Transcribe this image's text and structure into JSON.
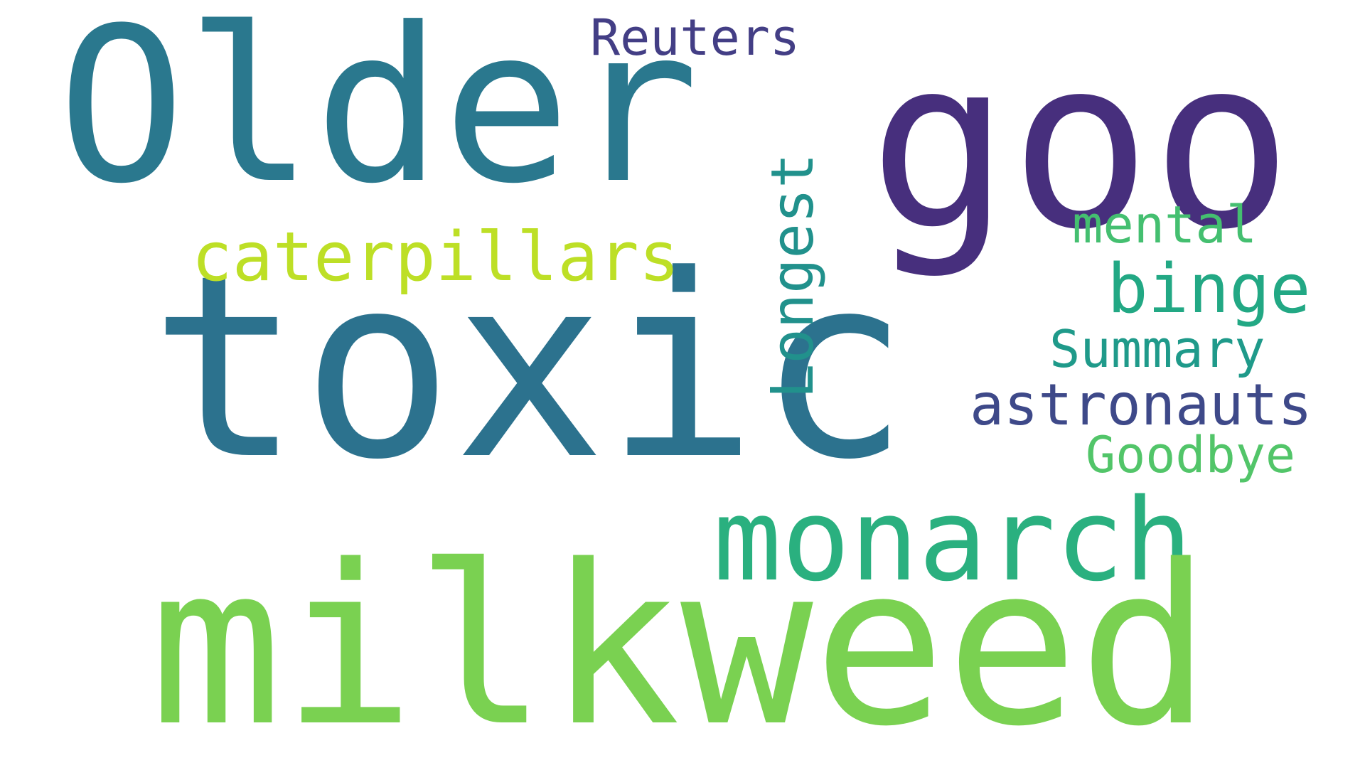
{
  "cloud": {
    "background": "#ffffff",
    "words": [
      {
        "id": "older",
        "text": "Older",
        "color": "#2a788e"
      },
      {
        "id": "goo",
        "text": "goo",
        "color": "#472f7d"
      },
      {
        "id": "reuters",
        "text": "Reuters",
        "color": "#433e85"
      },
      {
        "id": "toxic",
        "text": "toxic",
        "color": "#2c728e"
      },
      {
        "id": "caterpillars",
        "text": "caterpillars",
        "color": "#bddf26"
      },
      {
        "id": "longest",
        "text": "Longest",
        "color": "#21918c"
      },
      {
        "id": "mental",
        "text": "mental",
        "color": "#44bf70"
      },
      {
        "id": "binge",
        "text": "binge",
        "color": "#22a884"
      },
      {
        "id": "summary",
        "text": "Summary",
        "color": "#1f9a8a"
      },
      {
        "id": "astronauts",
        "text": "astronauts",
        "color": "#3e4989"
      },
      {
        "id": "goodbye",
        "text": "Goodbye",
        "color": "#52c569"
      },
      {
        "id": "monarch",
        "text": "monarch",
        "color": "#2ab07f"
      },
      {
        "id": "milkweed",
        "text": "milkweed",
        "color": "#7ad151"
      }
    ]
  }
}
